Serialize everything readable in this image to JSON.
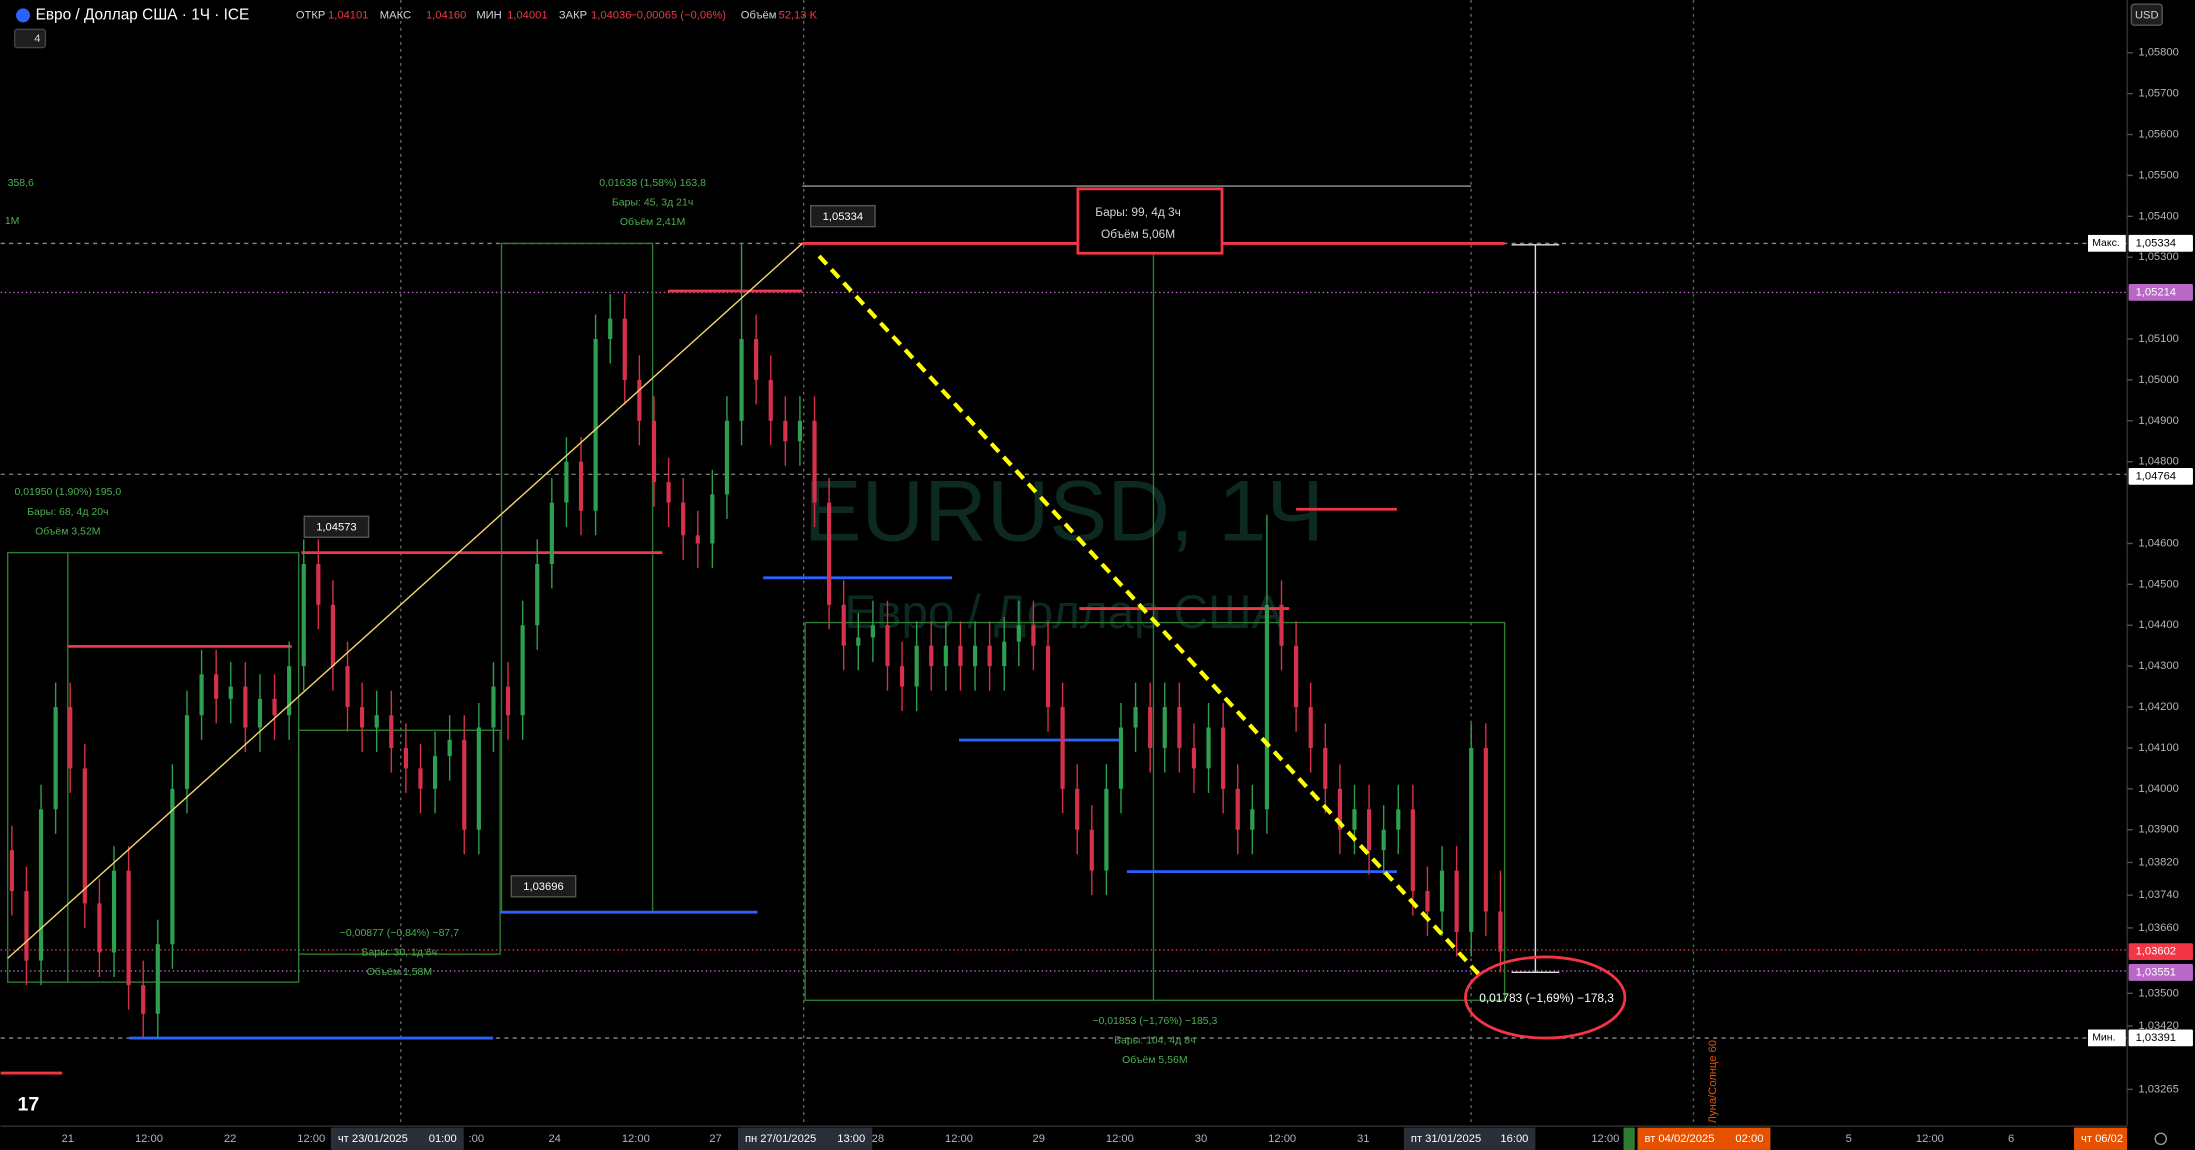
{
  "header": {
    "symbol": "Евро / Доллар США · 1Ч · ICE",
    "indicators": "4",
    "ohlc": [
      {
        "label": "ОТКР",
        "value": "1,04101"
      },
      {
        "label": "МАКС",
        "value": "1,04160"
      },
      {
        "label": "МИН",
        "value": "1,04001"
      },
      {
        "label": "ЗАКР",
        "value": "1,04036"
      }
    ],
    "change": "−0,00065 (−0,06%)",
    "volume_label": "Объём",
    "volume": "52,13 K"
  },
  "currency": "USD",
  "watermark": {
    "symbol": "EURUSD, 1Ч",
    "name": "Евро / Доллар США"
  },
  "chart": {
    "ylim": [
      1.03175,
      1.05929
    ],
    "yticks": [
      {
        "value": 1.058,
        "label": "1,05800"
      },
      {
        "value": 1.057,
        "label": "1,05700"
      },
      {
        "value": 1.056,
        "label": "1,05600"
      },
      {
        "value": 1.055,
        "label": "1,05500"
      },
      {
        "value": 1.054,
        "label": "1,05400"
      },
      {
        "value": 1.053,
        "label": "1,05300"
      },
      {
        "value": 1.051,
        "label": "1,05100"
      },
      {
        "value": 1.05,
        "label": "1,05000"
      },
      {
        "value": 1.049,
        "label": "1,04900"
      },
      {
        "value": 1.048,
        "label": "1,04800"
      },
      {
        "value": 1.046,
        "label": "1,04600"
      },
      {
        "value": 1.045,
        "label": "1,04500"
      },
      {
        "value": 1.044,
        "label": "1,04400"
      },
      {
        "value": 1.043,
        "label": "1,04300"
      },
      {
        "value": 1.042,
        "label": "1,04200"
      },
      {
        "value": 1.041,
        "label": "1,04100"
      },
      {
        "value": 1.04,
        "label": "1,04000"
      },
      {
        "value": 1.039,
        "label": "1,03900"
      },
      {
        "value": 1.0382,
        "label": "1,03820"
      },
      {
        "value": 1.0374,
        "label": "1,03740"
      },
      {
        "value": 1.0366,
        "label": "1,03660"
      },
      {
        "value": 1.035,
        "label": "1,03500"
      },
      {
        "value": 1.0342,
        "label": "1,03420"
      },
      {
        "value": 1.03265,
        "label": "1,03265"
      }
    ],
    "candles": [
      [
        1.0385,
        1.0391,
        1.0369,
        1.0375
      ],
      [
        1.0375,
        1.0381,
        1.0352,
        1.0358
      ],
      [
        1.0358,
        1.0401,
        1.0352,
        1.0395
      ],
      [
        1.0395,
        1.0426,
        1.0389,
        1.042
      ],
      [
        1.042,
        1.0426,
        1.0399,
        1.0405
      ],
      [
        1.0405,
        1.0411,
        1.0366,
        1.0372
      ],
      [
        1.0372,
        1.0378,
        1.0354,
        1.036
      ],
      [
        1.036,
        1.0386,
        1.0354,
        1.038
      ],
      [
        1.038,
        1.0386,
        1.0346,
        1.0352
      ],
      [
        1.0352,
        1.0358,
        1.03391,
        1.0345
      ],
      [
        1.0345,
        1.0368,
        1.0339,
        1.0362
      ],
      [
        1.0362,
        1.0406,
        1.0356,
        1.04
      ],
      [
        1.04,
        1.0424,
        1.0394,
        1.0418
      ],
      [
        1.0418,
        1.0434,
        1.0412,
        1.0428
      ],
      [
        1.0428,
        1.0434,
        1.0416,
        1.0422
      ],
      [
        1.0422,
        1.0431,
        1.0416,
        1.0425
      ],
      [
        1.0425,
        1.0431,
        1.0409,
        1.0415
      ],
      [
        1.0415,
        1.0428,
        1.0409,
        1.0422
      ],
      [
        1.0422,
        1.0428,
        1.0412,
        1.0418
      ],
      [
        1.0418,
        1.0436,
        1.0412,
        1.043
      ],
      [
        1.043,
        1.0461,
        1.0424,
        1.0455
      ],
      [
        1.0455,
        1.0461,
        1.0439,
        1.0445
      ],
      [
        1.0445,
        1.0451,
        1.0424,
        1.043
      ],
      [
        1.043,
        1.0436,
        1.0414,
        1.042
      ],
      [
        1.042,
        1.0426,
        1.0409,
        1.0415
      ],
      [
        1.0415,
        1.0424,
        1.0409,
        1.0418
      ],
      [
        1.0418,
        1.0424,
        1.0404,
        1.041
      ],
      [
        1.041,
        1.0416,
        1.0399,
        1.0405
      ],
      [
        1.0405,
        1.0411,
        1.0394,
        1.04
      ],
      [
        1.04,
        1.0414,
        1.0394,
        1.0408
      ],
      [
        1.0408,
        1.0418,
        1.0402,
        1.0412
      ],
      [
        1.0412,
        1.0418,
        1.0384,
        1.039
      ],
      [
        1.039,
        1.0421,
        1.0384,
        1.0415
      ],
      [
        1.0415,
        1.0431,
        1.0409,
        1.0425
      ],
      [
        1.0425,
        1.0431,
        1.0412,
        1.0418
      ],
      [
        1.0418,
        1.0446,
        1.0412,
        1.044
      ],
      [
        1.044,
        1.0461,
        1.0434,
        1.0455
      ],
      [
        1.0455,
        1.0476,
        1.0449,
        1.047
      ],
      [
        1.047,
        1.0486,
        1.0464,
        1.048
      ],
      [
        1.048,
        1.0486,
        1.0462,
        1.0468
      ],
      [
        1.0468,
        1.0516,
        1.0462,
        1.051
      ],
      [
        1.051,
        1.0521,
        1.0504,
        1.0515
      ],
      [
        1.0515,
        1.0521,
        1.0494,
        1.05
      ],
      [
        1.05,
        1.0506,
        1.0484,
        1.049
      ],
      [
        1.049,
        1.0496,
        1.0469,
        1.0475
      ],
      [
        1.0475,
        1.0481,
        1.0464,
        1.047
      ],
      [
        1.047,
        1.0476,
        1.0456,
        1.0462
      ],
      [
        1.0462,
        1.0468,
        1.0454,
        1.046
      ],
      [
        1.046,
        1.0478,
        1.0454,
        1.0472
      ],
      [
        1.0472,
        1.0496,
        1.0466,
        1.049
      ],
      [
        1.049,
        1.05334,
        1.0484,
        1.051
      ],
      [
        1.051,
        1.0516,
        1.0494,
        1.05
      ],
      [
        1.05,
        1.0506,
        1.0484,
        1.049
      ],
      [
        1.049,
        1.0496,
        1.0479,
        1.0485
      ],
      [
        1.0485,
        1.0496,
        1.0479,
        1.049
      ],
      [
        1.049,
        1.0496,
        1.0464,
        1.047
      ],
      [
        1.047,
        1.0476,
        1.0439,
        1.0445
      ],
      [
        1.0445,
        1.0451,
        1.0429,
        1.0435
      ],
      [
        1.0435,
        1.0443,
        1.0429,
        1.0437
      ],
      [
        1.0437,
        1.0446,
        1.0431,
        1.044
      ],
      [
        1.044,
        1.0446,
        1.0424,
        1.043
      ],
      [
        1.043,
        1.0436,
        1.0419,
        1.0425
      ],
      [
        1.0425,
        1.0441,
        1.0419,
        1.0435
      ],
      [
        1.0435,
        1.0441,
        1.0424,
        1.043
      ],
      [
        1.043,
        1.0441,
        1.0424,
        1.0435
      ],
      [
        1.0435,
        1.0441,
        1.0424,
        1.043
      ],
      [
        1.043,
        1.0441,
        1.0424,
        1.0435
      ],
      [
        1.0435,
        1.0441,
        1.0424,
        1.043
      ],
      [
        1.043,
        1.0442,
        1.0424,
        1.0436
      ],
      [
        1.0436,
        1.0446,
        1.043,
        1.044
      ],
      [
        1.044,
        1.0446,
        1.0429,
        1.0435
      ],
      [
        1.0435,
        1.0441,
        1.0414,
        1.042
      ],
      [
        1.042,
        1.0426,
        1.0394,
        1.04
      ],
      [
        1.04,
        1.0406,
        1.0384,
        1.039
      ],
      [
        1.039,
        1.0396,
        1.0374,
        1.038
      ],
      [
        1.038,
        1.0406,
        1.0374,
        1.04
      ],
      [
        1.04,
        1.0421,
        1.0394,
        1.0415
      ],
      [
        1.0415,
        1.0426,
        1.0409,
        1.042
      ],
      [
        1.042,
        1.0426,
        1.0404,
        1.041
      ],
      [
        1.041,
        1.0426,
        1.0404,
        1.042
      ],
      [
        1.042,
        1.0426,
        1.0404,
        1.041
      ],
      [
        1.041,
        1.0416,
        1.0399,
        1.0405
      ],
      [
        1.0405,
        1.0421,
        1.0399,
        1.0415
      ],
      [
        1.0415,
        1.0421,
        1.0394,
        1.04
      ],
      [
        1.04,
        1.0406,
        1.0384,
        1.039
      ],
      [
        1.039,
        1.0401,
        1.0384,
        1.0395
      ],
      [
        1.0395,
        1.0467,
        1.0389,
        1.0445
      ],
      [
        1.0445,
        1.0451,
        1.0429,
        1.0435
      ],
      [
        1.0435,
        1.0441,
        1.0414,
        1.042
      ],
      [
        1.042,
        1.0426,
        1.0404,
        1.041
      ],
      [
        1.041,
        1.0416,
        1.0394,
        1.04
      ],
      [
        1.04,
        1.0406,
        1.0384,
        1.039
      ],
      [
        1.039,
        1.0401,
        1.0384,
        1.0395
      ],
      [
        1.0395,
        1.0401,
        1.0379,
        1.0385
      ],
      [
        1.0385,
        1.0396,
        1.0379,
        1.039
      ],
      [
        1.039,
        1.0401,
        1.0384,
        1.0395
      ],
      [
        1.0395,
        1.0401,
        1.0369,
        1.0375
      ],
      [
        1.0375,
        1.0381,
        1.0364,
        1.037
      ],
      [
        1.037,
        1.0386,
        1.0364,
        1.038
      ],
      [
        1.038,
        1.0386,
        1.0359,
        1.0365
      ],
      [
        1.0365,
        1.0416,
        1.0359,
        1.041
      ],
      [
        1.041,
        1.0416,
        1.0364,
        1.037
      ],
      [
        1.037,
        1.038,
        1.03551,
        1.03602
      ]
    ],
    "badges": [
      {
        "tag": "Макс.",
        "value": 1.05334,
        "label": "1,05334",
        "color": "#ffffff"
      },
      {
        "value": 1.05214,
        "label": "1,05214",
        "color": "#ba68c8"
      },
      {
        "value": 1.04764,
        "label": "1,04764",
        "color": "#ffffff"
      },
      {
        "value": 1.03602,
        "label": "1,03602",
        "color": "#f23645"
      },
      {
        "value": 1.03551,
        "label": "1,03551",
        "color": "#ba68c8"
      },
      {
        "tag": "Мин.",
        "value": 1.03391,
        "label": "1,03391",
        "color": "#ffffff"
      }
    ]
  },
  "time_axis": [
    "21",
    "12:00",
    "22",
    "12:00",
    ":00",
    "24",
    "12:00",
    "27",
    "28",
    "12:00",
    "29",
    "12:00",
    "30",
    "12:00",
    "31",
    "12:00",
    "5",
    "12:00",
    "6"
  ],
  "time_highlights": [
    {
      "date": "чт 23/01/2025",
      "time": "01:00"
    },
    {
      "date": "пн 27/01/2025",
      "time": "13:00"
    },
    {
      "date": "пт 31/01/2025",
      "time": "16:00"
    },
    {
      "date": "вт 04/02/2025",
      "time": "02:00"
    },
    {
      "date": "чт 06/02"
    }
  ],
  "annotations": {
    "left_partial": [
      "358,6",
      "1M"
    ],
    "measure_up_1": [
      "0,01950 (1,90%) 195,0",
      "Бары: 68, 4д 20ч",
      "Объём 3,52M"
    ],
    "measure_up_2": [
      "0,01638 (1,58%) 163,8",
      "Бары: 45, 3д 21ч",
      "Объём 2,41M"
    ],
    "measure_down_1": [
      "−0,00877 (−0,84%) −87,7",
      "Бары: 30, 1д 6ч",
      "Объём 1,58M"
    ],
    "measure_down_2": [
      "−0,01853 (−1,76%) −185,3",
      "Бары: 104, 4д 8ч",
      "Объём 5,56M"
    ],
    "range_box": [
      "Бары: 99, 4д 3ч",
      "Объём 5,06M"
    ],
    "circled": "0,01783 (−1,69%) −178,3",
    "callouts": [
      "1,05334",
      "1,04573",
      "1,03696"
    ],
    "indicator": "Луна/Солнце 60"
  }
}
